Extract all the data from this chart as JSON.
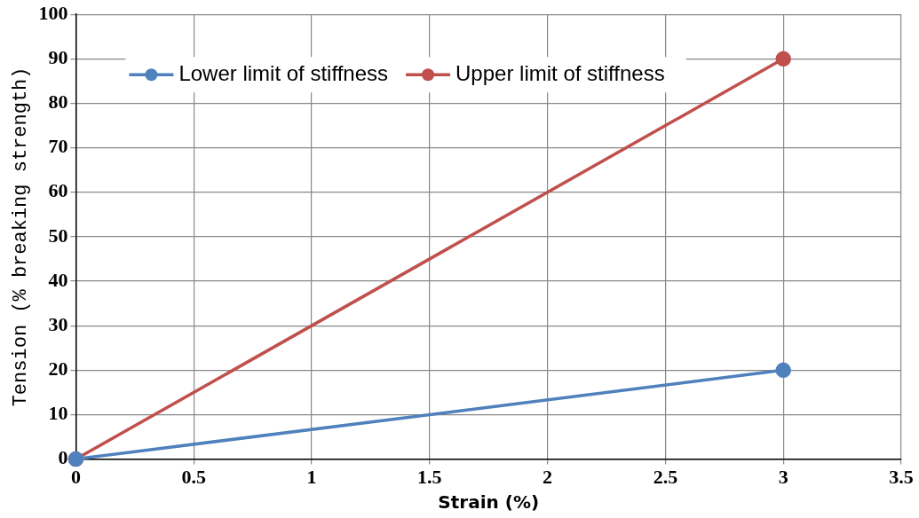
{
  "chart_data": {
    "type": "line",
    "xlabel": "Strain (%)",
    "ylabel": "Tension (% breaking strength)",
    "xlim": [
      0,
      3.5
    ],
    "xticks": [
      0,
      0.5,
      1,
      1.5,
      2,
      2.5,
      3,
      3.5
    ],
    "ylim": [
      0,
      100
    ],
    "yticks": [
      0,
      10,
      20,
      30,
      40,
      50,
      60,
      70,
      80,
      90,
      100
    ],
    "grid": true,
    "legend": "top left",
    "marker": "circle",
    "line_style": "solid",
    "x": [
      0,
      3
    ],
    "series": [
      {
        "name": "Lower limit of stiffness",
        "color": "#4f81bd",
        "values": [
          0,
          20
        ]
      },
      {
        "name": "Upper limit of stiffness",
        "color": "#c0504d",
        "values": [
          0,
          90
        ]
      }
    ]
  }
}
